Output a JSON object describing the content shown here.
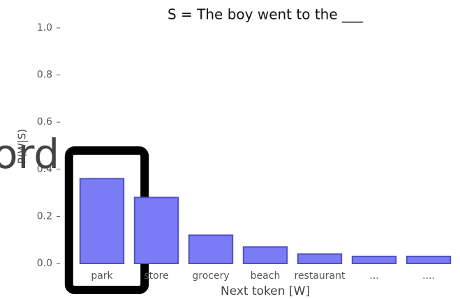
{
  "chart_data": {
    "type": "bar",
    "title": "S = The boy went to the ___",
    "y_label": "P(W|S)",
    "x_label": "Next token [W]",
    "overlay_text": "ord",
    "categories": [
      "park",
      "store",
      "grocery",
      "beach",
      "restaurant",
      "...",
      "...."
    ],
    "values": [
      0.36,
      0.28,
      0.12,
      0.07,
      0.04,
      0.03,
      0.03
    ],
    "color": "#7b7bf5",
    "ylim": [
      0,
      1
    ],
    "yticks": [
      {
        "value": 0,
        "label": "0.0"
      },
      {
        "value": 0.2,
        "label": "0.2"
      },
      {
        "value": 0.4,
        "label": "0.4"
      },
      {
        "value": 0.6,
        "label": "0.6"
      },
      {
        "value": 0.8,
        "label": "0.8"
      },
      {
        "value": 1,
        "label": "1.0"
      }
    ],
    "highlight": "park"
  }
}
